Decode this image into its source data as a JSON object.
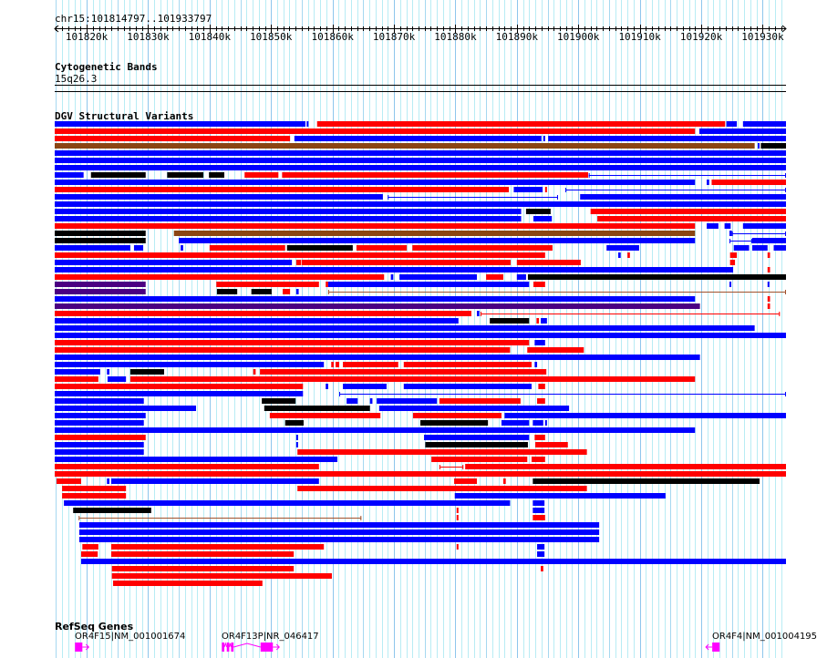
{
  "view": {
    "chrom": "chr15",
    "start": 101814797,
    "end": 101933797,
    "label": "chr15:101814797..101933797"
  },
  "ruler": {
    "labels": [
      "101820k",
      "101830k",
      "101840k",
      "101850k",
      "101860k",
      "101870k",
      "101880k",
      "101890k",
      "101900k",
      "101910k",
      "101920k",
      "101930k"
    ],
    "label_positions_kb": [
      101820,
      101830,
      101840,
      101850,
      101860,
      101870,
      101880,
      101890,
      101900,
      101910,
      101920,
      101930
    ]
  },
  "cytoband": {
    "title": "Cytogenetic Bands",
    "band": "15q26.3"
  },
  "dgv": {
    "title": "DGV Structural Variants",
    "colors": {
      "b": "#0000ff",
      "r": "#ff0000",
      "k": "#000000",
      "n": "#8b4513",
      "p": "#4b0082",
      "l": "#0000ff",
      "q": "#ff0000",
      "m": "#a0522d"
    },
    "legend_note": "segments are kb offsets from view start; b=blue,r=red,k=black,n=brown,p=purple,l/q/m=thin connector",
    "rows": [
      "b0-40.8,b41-41.3,r42.7-109.1,b109.3-111,b112-119",
      "r0-104.2,b104.9-119",
      "r0-38.3,b39-79.2,b79.5-79.8,b80.3-119",
      "n0-113.9,b114.4-114.7,k114.9-119",
      "b0-119",
      "b0-119",
      "b0-119",
      "b0-4.7,k5.9-14.8,k18.3-24.2,k25.1-27.6,r30.9-36.4,r37-86.8,l86.9-119",
      "b0-104.2,b106.1-106.5,r106.9-119",
      "r0-73.9,b74.7-79.4,r79.8-80.1,l83.1-119",
      "b0-53.4,l54.2-81.9,b85.5-119",
      "b0-119",
      "b0-75.9,k76.7-80.7,r87.2-119",
      "b0-75.9,b77.9-80.9,r88.3-119",
      "r0-104.2,b106.1-108,b109-110,b112-119",
      "k0-14.8,n19.4-104.2,b109.8-110.2,l110.2-119",
      "k0-14.8,b20.2-104.2,l109.8-113.5,b113.5-119",
      "b0-12.3,b12.9-14.4,b20.5-20.9,r25.2-37.5,k37.8-48.5,r49.1-57.3,r58.2-81,b89.8-95.1,b110.5-113,b113.5-116,b117-119",
      "r0-79.8,b91.7-92.1,r93.2-93.6,r109.9-111,r116-116.4",
      "b0-38.6,r39.3-40.1,r40.2-74.2,r75.2-85.6,r109.9-110.7",
      "b0-110.4,r116-116.4",
      "r0-53.6,b54.7-55.1,b56.1-68.7,r70.2-73,b75.2-76.7,k77-119",
      "p0-14.8,r26.3-43,r44.1-44.5,b44.5-77.2,r77.9-79.8,b109.8-110.1,b116-116.3",
      "p0-14.8,k26.4-29.7,k32-35.3,r37.1-38.3,b39.3-39.7,m44.5-119",
      "b0-104.2,r116-116.4",
      "p0-105,r116-116.4",
      "r0-67.8,b68.7-69.1,q69.3-118",
      "b0-65.7,k70.8-77.2,r78.4-78.8,b79.1-80.1",
      "b0-113.9",
      "b0-119",
      "r0-77.2,b78.1-79.8",
      "r0-74.1,r76.9-86.1",
      "b0-105",
      "b0-43.8,r45-45.4,r45.7-46.3,r46.9-55.9,r56.8-77.6,b78.1-78.5",
      "b0-7.4,b8.5-8.9,k12.3-17.8,r32.3-32.7,r33.4-80",
      "r0-7.1,b8.6-11.6,r12.3-104.2",
      "r0-40.4,b44.1-44.5,b46.9-54,b56.8-77.6,r78.7-79.8",
      "b0-40.4,l46.3-119",
      "b0-14.5,k33.7-39.2,b47.5-49.3,b51.3-51.7,b52.4-62.2,r62.6-75.8,r78.5-79.8",
      "b0-23,k34.1-51.3,b52.8-83.7",
      "b0-14.8,r35-53,r58.3-72.7,b73.2-119",
      "b0-14.5,k37.5-40.5,k59.5-70.5,b72.7-77.2,b77.8-79.5,b79.8-80.1",
      "b0-104.2",
      "r0-14.8,b39.3-39.6,b60.1-77.2,r78.1-79.8",
      "b0-14.5,b39.3-39.6,k60.3-77,r78.2-83.5",
      "b0-14.5,r39.5-86.6",
      "b0-46,r61.3-76.9,r77.6-79.8",
      "r0-43,q62.6-66.5,r66.8-119",
      "r0-119",
      "r0.3-4.3,b8.5-8.9,b9.2-43,r65-68.7,r73-73.4,k77.8-114.7",
      "r1.2-11.6,r39.5-86.6",
      "r1.2-11.6,b65.1-99.4",
      "b1.5-74.1,b77.8-79.7",
      "k3-15.7,r65.4-65.7,b77.8-79.7",
      "m3.9-49.9,r65.4-65.7,r77.8-79.8",
      "b4-88.6",
      "b4-88.6",
      "b4-88.6",
      "r4.5-7.1,r9.2-43.8,r65.4-65.7,b78.5-79.7",
      "r4.3-7,r9.2-38.9,b78.5-79.7",
      "b4.3-119",
      "r9.3-38.9,r79.1-79.5",
      "r9.3-45.1",
      "r9.5-33.8"
    ]
  },
  "refseq": {
    "title": "RefSeq Genes",
    "color": "#ff00ff",
    "genes": [
      {
        "label": "OR4F15|NM_001001674",
        "strand": "+",
        "exons_kb": [
          [
            3.3,
            4.5
          ]
        ]
      },
      {
        "label": "OR4F13P|NR_046417",
        "strand": "+",
        "exons_kb": [
          [
            27.2,
            27.6
          ],
          [
            28.0,
            28.4
          ],
          [
            28.7,
            29.1
          ],
          [
            33.5,
            35.5
          ]
        ]
      },
      {
        "label": "OR4F4|NM_001004195",
        "strand": "-",
        "exons_kb": [
          [
            107.0,
            108.2
          ]
        ]
      }
    ]
  }
}
